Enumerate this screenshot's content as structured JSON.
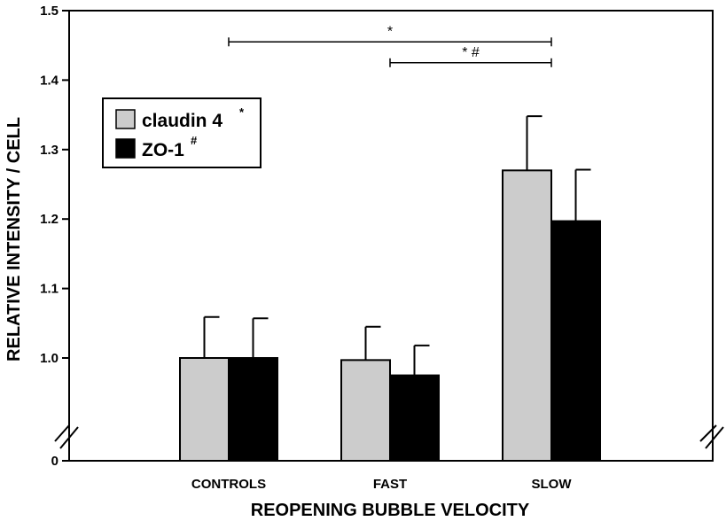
{
  "chart_data": {
    "type": "bar",
    "xlabel": "REOPENING BUBBLE VELOCITY",
    "ylabel": "RELATIVE INTENSITY / CELL",
    "categories": [
      "CONTROLS",
      "FAST",
      "SLOW"
    ],
    "ylim": [
      1.0,
      1.5
    ],
    "axis_break": true,
    "y_ticks": [
      {
        "value": 0,
        "label": "0"
      },
      {
        "value": 1.0,
        "label": "1.0"
      },
      {
        "value": 1.1,
        "label": "1.1"
      },
      {
        "value": 1.2,
        "label": "1.2"
      },
      {
        "value": 1.3,
        "label": "1.3"
      },
      {
        "value": 1.4,
        "label": "1.4"
      },
      {
        "value": 1.5,
        "label": "1.5"
      }
    ],
    "series": [
      {
        "name": "claudin 4",
        "marker": "*",
        "color": "#cccccc",
        "values": [
          1.0,
          0.997,
          1.27
        ],
        "errors": [
          0.059,
          0.048,
          0.078
        ]
      },
      {
        "name": "ZO-1",
        "marker": "#",
        "color": "#000000",
        "values": [
          1.0,
          0.975,
          1.197
        ],
        "errors": [
          0.057,
          0.043,
          0.074
        ]
      }
    ],
    "legend_position": "top-left",
    "significance": [
      {
        "label": "*",
        "from": "CONTROLS",
        "to": "SLOW",
        "y": 1.455
      },
      {
        "label": "* #",
        "from": "FAST",
        "to": "SLOW",
        "y": 1.425
      }
    ]
  }
}
